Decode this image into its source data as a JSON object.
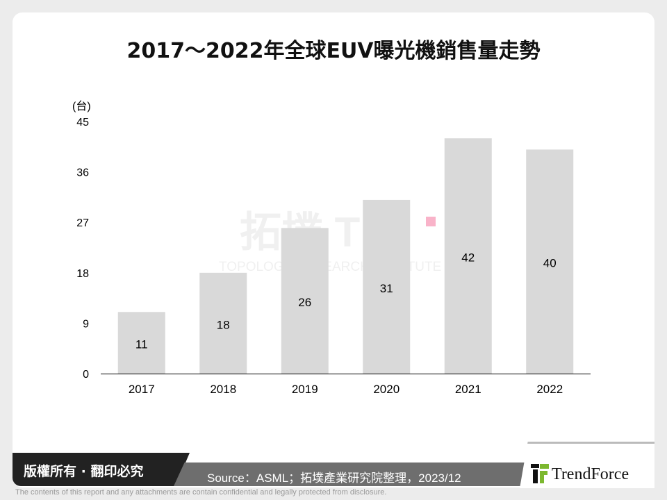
{
  "title": "2017～2022年全球EUV曝光機銷售量走勢",
  "chart_data": {
    "type": "bar",
    "title": "2017～2022年全球EUV曝光機銷售量走勢",
    "ylabel": "(台)",
    "categories": [
      "2017",
      "2018",
      "2019",
      "2020",
      "2021",
      "2022"
    ],
    "values": [
      11,
      18,
      26,
      31,
      42,
      40
    ],
    "ylim": [
      0,
      45
    ],
    "yticks": [
      0,
      9,
      18,
      27,
      36,
      45
    ],
    "grid": false,
    "bar_color": "#d9d9d9"
  },
  "watermark": {
    "main": "拓墣 TRI",
    "sub": "TOPOLOGY RESEARCH INSTITUTE"
  },
  "footer": {
    "copyright": "版權所有 · 翻印必究",
    "source": "Source：ASML；拓墣產業研究院整理，2023/12",
    "logo": "TrendForce",
    "disclaimer": "The contents of this report and any attachments are contain confidential and legally protected from disclosure."
  }
}
